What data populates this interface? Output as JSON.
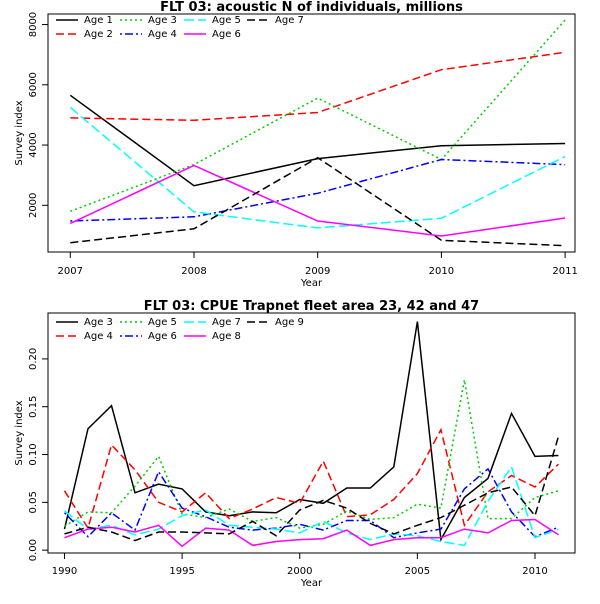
{
  "chart_data": [
    {
      "type": "line",
      "title": "FLT 03:   acoustic   N of individuals, millions",
      "xlabel": "Year",
      "ylabel": "Survey index",
      "x": [
        2007,
        2008,
        2009,
        2010,
        2011
      ],
      "xlim": [
        2006.82,
        2011.08
      ],
      "ylim": [
        450,
        8350
      ],
      "xticks": [
        2007,
        2008,
        2009,
        2010,
        2011
      ],
      "yticks": [
        2000,
        4000,
        6000,
        8000
      ],
      "legend": "top-left",
      "grid": false,
      "series": [
        {
          "name": "Age 1",
          "color": "#000000",
          "dash": "solid",
          "values": [
            5650,
            2650,
            3550,
            3980,
            4050
          ]
        },
        {
          "name": "Age 2",
          "color": "#ff0000",
          "dash": "dashed",
          "values": [
            4900,
            4820,
            5080,
            6500,
            7080
          ]
        },
        {
          "name": "Age 3",
          "color": "#00cd00",
          "dash": "dotted",
          "values": [
            1800,
            3350,
            5560,
            3520,
            8150
          ]
        },
        {
          "name": "Age 4",
          "color": "#0000ff",
          "dash": "dotdash",
          "values": [
            1480,
            1620,
            2400,
            3520,
            3350
          ]
        },
        {
          "name": "Age 5",
          "color": "#00ffff",
          "dash": "longdash",
          "values": [
            5250,
            1780,
            1250,
            1570,
            3620
          ]
        },
        {
          "name": "Age 6",
          "color": "#ff00ff",
          "dash": "solid",
          "values": [
            1400,
            3320,
            1480,
            980,
            1580
          ]
        },
        {
          "name": "Age 7",
          "color": "#000000",
          "dash": "dashed",
          "values": [
            760,
            1220,
            3580,
            840,
            660
          ]
        }
      ]
    },
    {
      "type": "line",
      "title": "FLT 03: CPUE Trapnet fleet area 23, 42 and 47",
      "xlabel": "Year",
      "ylabel": "Survey index",
      "x": [
        1990,
        1991,
        1992,
        1993,
        1994,
        1995,
        1996,
        1997,
        1998,
        1999,
        2000,
        2001,
        2002,
        2003,
        2004,
        2005,
        2006,
        2007,
        2008,
        2009,
        2010,
        2011
      ],
      "xlim": [
        1989.3,
        2011.7
      ],
      "ylim": [
        -0.003,
        0.248
      ],
      "xticks": [
        1990,
        1995,
        2000,
        2005,
        2010
      ],
      "yticks": [
        0.0,
        0.05,
        0.1,
        0.15,
        0.2
      ],
      "ytick_labels": [
        "0.00",
        "0.05",
        "0.10",
        "0.15",
        "0.20"
      ],
      "legend": "top-left",
      "grid": false,
      "series": [
        {
          "name": "Age 3",
          "color": "#000000",
          "dash": "solid",
          "values": [
            0.022,
            0.127,
            0.151,
            0.06,
            0.069,
            0.064,
            0.04,
            0.036,
            0.04,
            0.039,
            0.053,
            0.049,
            0.065,
            0.065,
            0.087,
            0.239,
            0.011,
            0.055,
            0.075,
            0.143,
            0.098,
            0.099
          ]
        },
        {
          "name": "Age 4",
          "color": "#ff0000",
          "dash": "dashed",
          "values": [
            0.062,
            0.023,
            0.11,
            0.084,
            0.05,
            0.04,
            0.06,
            0.033,
            0.043,
            0.055,
            0.049,
            0.093,
            0.035,
            0.037,
            0.053,
            0.08,
            0.126,
            0.026,
            0.061,
            0.078,
            0.066,
            0.09
          ]
        },
        {
          "name": "Age 5",
          "color": "#00cd00",
          "dash": "dotted",
          "values": [
            0.025,
            0.04,
            0.039,
            0.067,
            0.098,
            0.038,
            0.034,
            0.043,
            0.03,
            0.034,
            0.023,
            0.027,
            0.041,
            0.032,
            0.034,
            0.048,
            0.044,
            0.178,
            0.033,
            0.033,
            0.055,
            0.062
          ]
        },
        {
          "name": "Age 6",
          "color": "#0000ff",
          "dash": "dotdash",
          "values": [
            0.039,
            0.014,
            0.039,
            0.021,
            0.082,
            0.044,
            0.035,
            0.024,
            0.021,
            0.023,
            0.027,
            0.021,
            0.031,
            0.031,
            0.013,
            0.018,
            0.022,
            0.064,
            0.085,
            0.04,
            0.014,
            0.024
          ]
        },
        {
          "name": "Age 7",
          "color": "#00ffff",
          "dash": "longdash",
          "values": [
            0.041,
            0.022,
            0.026,
            0.016,
            0.022,
            0.036,
            0.042,
            0.026,
            0.024,
            0.022,
            0.018,
            0.03,
            0.018,
            0.011,
            0.017,
            0.015,
            0.009,
            0.005,
            0.051,
            0.087,
            0.013,
            0.022
          ]
        },
        {
          "name": "Age 8",
          "color": "#ff00ff",
          "dash": "solid",
          "values": [
            0.013,
            0.022,
            0.024,
            0.019,
            0.026,
            0.004,
            0.023,
            0.021,
            0.005,
            0.009,
            0.011,
            0.012,
            0.021,
            0.005,
            0.011,
            0.013,
            0.013,
            0.022,
            0.018,
            0.031,
            0.032,
            0.016
          ]
        },
        {
          "name": "Age 9",
          "color": "#000000",
          "dash": "dashed",
          "values": [
            0.017,
            0.024,
            0.019,
            0.01,
            0.019,
            0.019,
            0.018,
            0.017,
            0.03,
            0.015,
            0.042,
            0.052,
            0.044,
            0.028,
            0.017,
            0.026,
            0.034,
            0.047,
            0.06,
            0.066,
            0.036,
            0.119
          ]
        }
      ]
    }
  ]
}
